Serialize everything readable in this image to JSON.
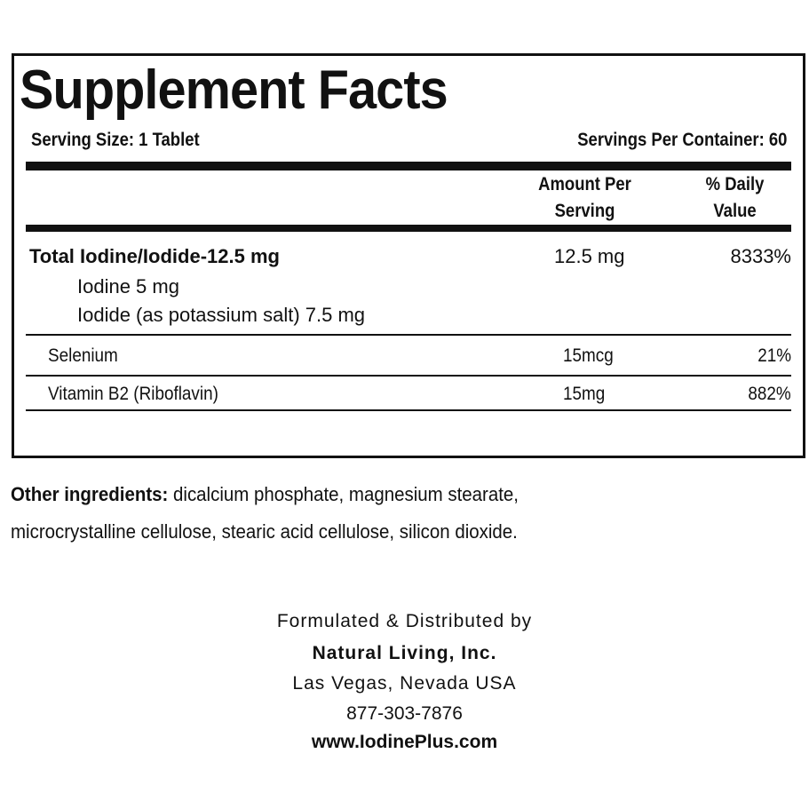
{
  "panel": {
    "title": "Supplement Facts",
    "serving_size": "Serving Size: 1   Tablet",
    "servings_per_container": "Servings Per Container: 60",
    "columns": {
      "amount_line1": "Amount Per",
      "amount_line2": "Serving",
      "dv_line1": "% Daily",
      "dv_line2": "Value"
    },
    "rows": [
      {
        "name": "Total Iodine/Iodide-12.5 mg",
        "amount": "12.5 mg",
        "dv": "8333%",
        "sub": [
          "Iodine 5 mg",
          "Iodide (as potassium salt) 7.5 mg"
        ]
      },
      {
        "name": "Selenium",
        "amount": "15mcg",
        "dv": "21%"
      },
      {
        "name": "Vitamin B2 (Riboflavin)",
        "amount": "15mg",
        "dv": "882%"
      }
    ]
  },
  "other_ingredients": {
    "label": "Other ingredients:",
    "line1": " dicalcium phosphate, magnesium stearate,",
    "line2": "microcrystalline cellulose, stearic acid cellulose, silicon dioxide."
  },
  "footer": {
    "formulated": "Formulated & Distributed by",
    "company": "Natural Living, Inc.",
    "location": "Las Vegas, Nevada USA",
    "phone": "877-303-7876",
    "website": "www.IodinePlus.com"
  }
}
